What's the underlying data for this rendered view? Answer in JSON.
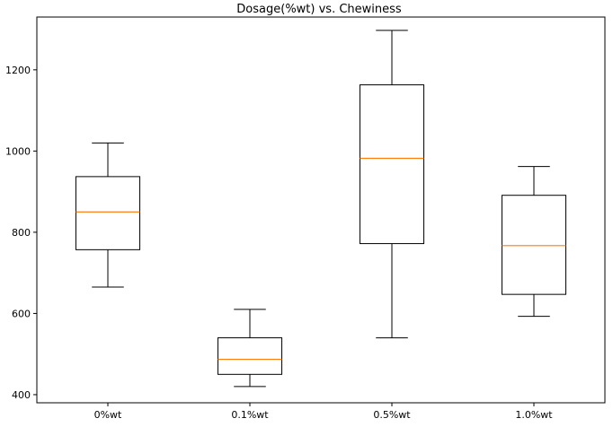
{
  "chart_data": {
    "type": "box",
    "title": "Dosage(%wt) vs. Chewiness",
    "xlabel": "",
    "ylabel": "",
    "categories": [
      "0%wt",
      "0.1%wt",
      "0.5%wt",
      "1.0%wt"
    ],
    "boxes": [
      {
        "whisker_low": 665,
        "q1": 757,
        "median": 850,
        "q3": 937,
        "whisker_high": 1020
      },
      {
        "whisker_low": 420,
        "q1": 450,
        "median": 487,
        "q3": 540,
        "whisker_high": 610
      },
      {
        "whisker_low": 540,
        "q1": 772,
        "median": 982,
        "q3": 1163,
        "whisker_high": 1297
      },
      {
        "whisker_low": 593,
        "q1": 647,
        "median": 767,
        "q3": 891,
        "whisker_high": 962
      }
    ],
    "ylim": [
      380,
      1330
    ],
    "yticks": [
      400,
      600,
      800,
      1000,
      1200
    ],
    "grid": false,
    "colors": {
      "median": "#ff7f0e",
      "box": "#000000"
    }
  }
}
